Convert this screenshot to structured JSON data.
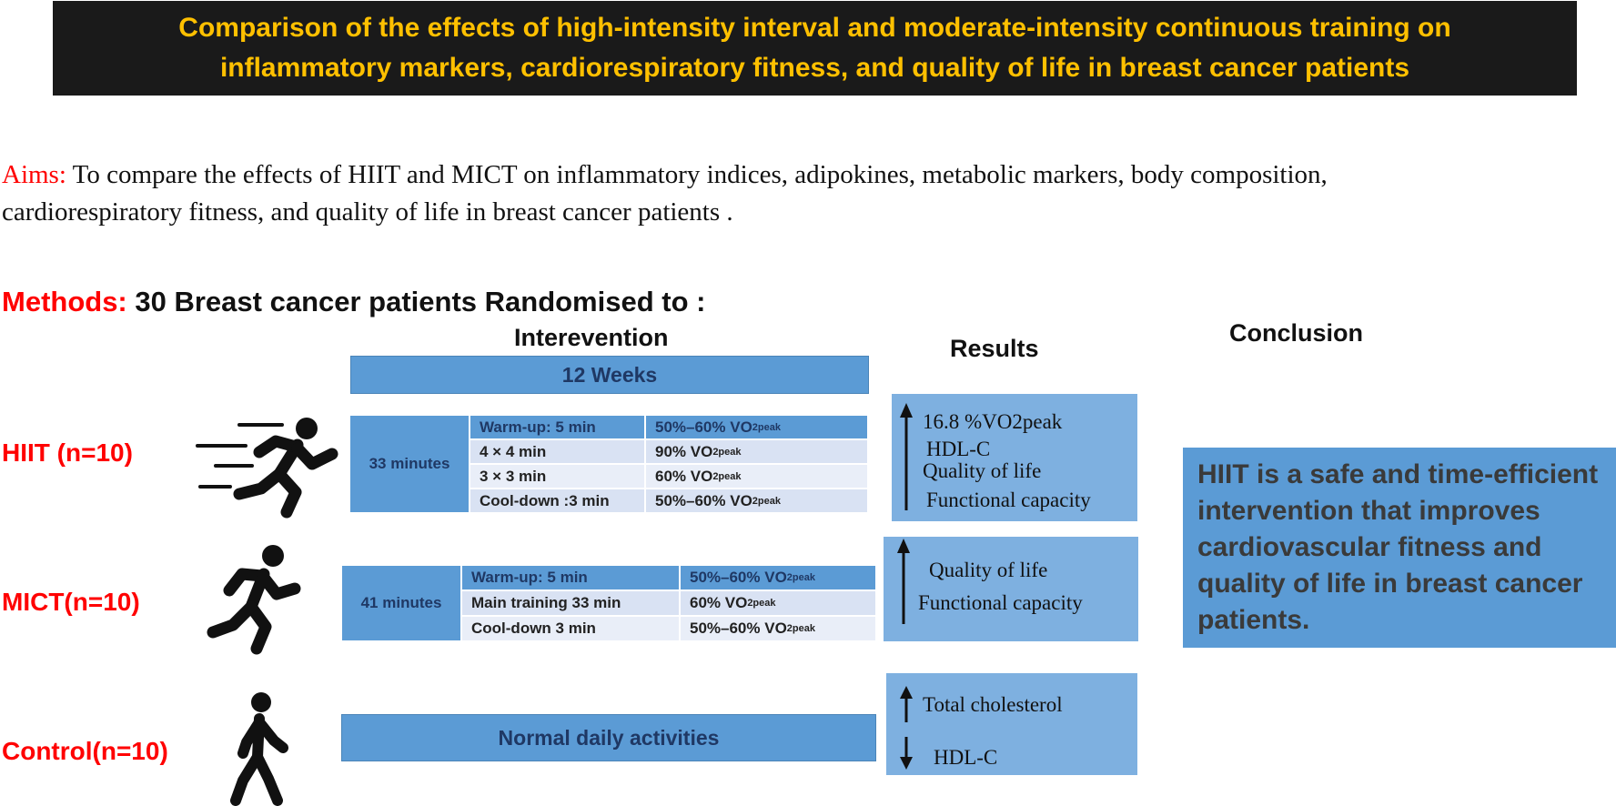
{
  "title": {
    "line1": "Comparison of the effects of high-intensity interval and moderate-intensity continuous training on",
    "line2": "inflammatory markers, cardiorespiratory fitness, and quality of life in breast cancer patients"
  },
  "aims": {
    "label": "Aims:",
    "text": " To compare the effects of HIIT and MICT on inflammatory indices, adipokines, metabolic markers, body composition, cardiorespiratory fitness, and quality of life in breast cancer patients ."
  },
  "methods": {
    "label": "Methods:",
    "text": " 30 Breast cancer patients Randomised  to :"
  },
  "headers": {
    "intervention": "Interevention",
    "results": "Results",
    "conclusion": "Conclusion"
  },
  "duration_bar": "12 Weeks",
  "groups": {
    "hiit": {
      "label": "HIIT (n=10)",
      "duration": "33 minutes",
      "rows": [
        {
          "phase": "Warm-up: 5 min",
          "intensity": "50%–60% VO",
          "sub": "2peak"
        },
        {
          "phase": "4 × 4 min",
          "intensity": "90% VO",
          "sub": "2peak"
        },
        {
          "phase": "3 × 3 min",
          "intensity": "60% VO",
          "sub": "2peak"
        },
        {
          "phase": "Cool-down :3 min",
          "intensity": "50%–60% VO",
          "sub": "2peak"
        }
      ],
      "results": [
        "16.8 %VO2peak",
        "HDL-C",
        "Quality  of life",
        "Functional capacity"
      ]
    },
    "mict": {
      "label": "MICT(n=10)",
      "duration": "41 minutes",
      "rows": [
        {
          "phase": "Warm-up: 5 min",
          "intensity": "50%–60% VO",
          "sub": "2peak"
        },
        {
          "phase": "Main training 33 min",
          "intensity": "60% VO",
          "sub": "2peak"
        },
        {
          "phase": "Cool-down 3 min",
          "intensity": "50%–60% VO",
          "sub": "2peak"
        }
      ],
      "results": [
        "Quality  of life",
        "Functional capacity"
      ]
    },
    "control": {
      "label": "Control(n=10)",
      "activity": "Normal daily activities",
      "results_up": "Total cholesterol",
      "results_down": "HDL-C"
    }
  },
  "conclusion_text": "HIIT is a safe and time-efficient intervention that improves cardiovascular fitness and quality of life in breast cancer patients.",
  "colors": {
    "title_bg": "#1a1a1a",
    "title_text": "#ffc000",
    "label_red": "#ff0000",
    "bar_blue": "#5b9bd5",
    "result_blue": "#7eb0e0",
    "dark_blue_text": "#1f3864"
  }
}
